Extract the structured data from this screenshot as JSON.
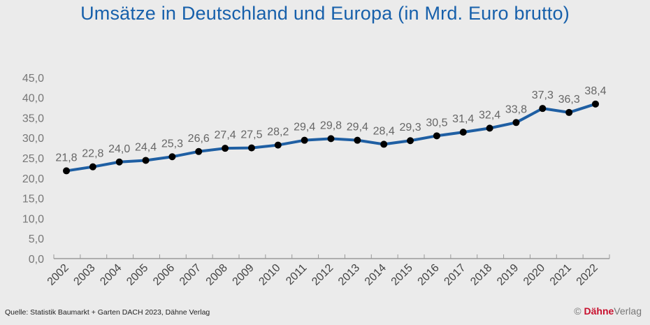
{
  "chart_data": {
    "type": "line",
    "title": "Umsätze in Deutschland und Europa  (in Mrd. Euro brutto)",
    "categories": [
      "2002",
      "2003",
      "2004",
      "2005",
      "2006",
      "2007",
      "2008",
      "2009",
      "2010",
      "2011",
      "2012",
      "2013",
      "2014",
      "2015",
      "2016",
      "2017",
      "2018",
      "2019",
      "2020",
      "2021",
      "2022"
    ],
    "values": [
      21.8,
      22.8,
      24.0,
      24.4,
      25.3,
      26.6,
      27.4,
      27.5,
      28.2,
      29.4,
      29.8,
      29.4,
      28.4,
      29.3,
      30.5,
      31.4,
      32.4,
      33.8,
      37.3,
      36.3,
      38.4
    ],
    "data_labels": [
      "21,8",
      "22,8",
      "24,0",
      "24,4",
      "25,3",
      "26,6",
      "27,4",
      "27,5",
      "28,2",
      "29,4",
      "29,8",
      "29,4",
      "28,4",
      "29,3",
      "30,5",
      "31,4",
      "32,4",
      "33,8",
      "37,3",
      "36,3",
      "38,4"
    ],
    "yticks": [
      "0,0",
      "5,0",
      "10,0",
      "15,0",
      "20,0",
      "25,0",
      "30,0",
      "35,0",
      "40,0",
      "45,0"
    ],
    "ylim": [
      0,
      45
    ],
    "grid": false,
    "line_color": "#1f5fa3",
    "marker_color": "#000000"
  },
  "footer": {
    "source": "Quelle: Statistik Baumarkt + Garten DACH 2023, Dähne Verlag",
    "copyright_symbol": "©",
    "brand": "Dähne",
    "brand_suffix": "Verlag"
  }
}
